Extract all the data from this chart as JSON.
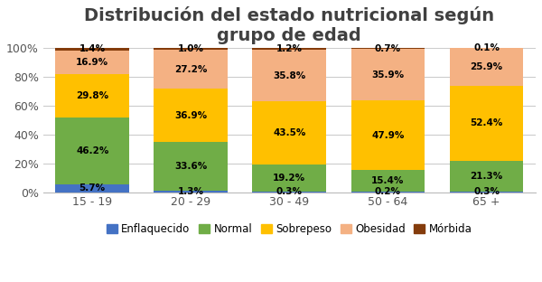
{
  "title": "Distribución del estado nutricional según\ngrupo de edad",
  "categories": [
    "15 - 19",
    "20 - 29",
    "30 - 49",
    "50 - 64",
    "65 +"
  ],
  "series": {
    "Enflaquecido": [
      5.7,
      1.3,
      0.3,
      0.2,
      0.3
    ],
    "Normal": [
      46.2,
      33.6,
      19.2,
      15.4,
      21.3
    ],
    "Sobrepeso": [
      29.8,
      36.9,
      43.5,
      47.9,
      52.4
    ],
    "Obesidad": [
      16.9,
      27.2,
      35.8,
      35.9,
      25.9
    ],
    "Mórbida": [
      1.4,
      1.0,
      1.2,
      0.7,
      0.1
    ]
  },
  "colors": {
    "Enflaquecido": "#4472C4",
    "Normal": "#70AD47",
    "Sobrepeso": "#FFC000",
    "Obesidad": "#F4B183",
    "Mórbida": "#843C0C"
  },
  "ylim": [
    0,
    100
  ],
  "yticks": [
    0,
    20,
    40,
    60,
    80,
    100
  ],
  "ytick_labels": [
    "0%",
    "20%",
    "40%",
    "60%",
    "80%",
    "100%"
  ],
  "title_fontsize": 14,
  "legend_fontsize": 8.5,
  "label_fontsize": 7.5,
  "bar_width": 0.75,
  "background_color": "#FFFFFF"
}
